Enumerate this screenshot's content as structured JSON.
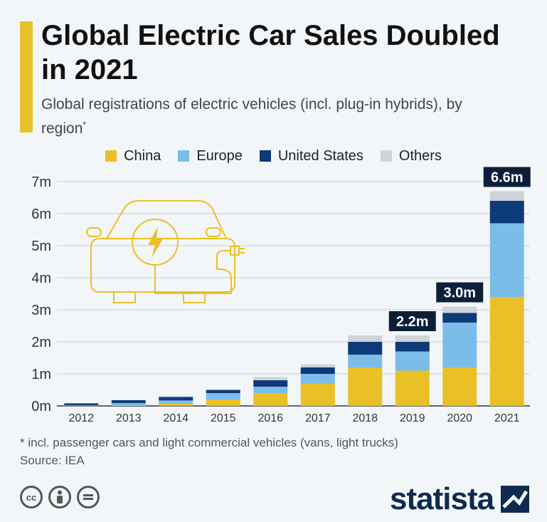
{
  "header": {
    "title": "Global Electric Car Sales Doubled in 2021",
    "subtitle": "Global registrations of electric vehicles (incl. plug-in hybrids), by region",
    "subtitle_mark": "*"
  },
  "chart_data": {
    "type": "bar",
    "stacked": true,
    "categories": [
      "2012",
      "2013",
      "2014",
      "2015",
      "2016",
      "2017",
      "2018",
      "2019",
      "2020",
      "2021"
    ],
    "series": [
      {
        "name": "China",
        "color": "#e9c028",
        "values": [
          0.0,
          0.02,
          0.07,
          0.2,
          0.4,
          0.7,
          1.2,
          1.1,
          1.2,
          3.4
        ]
      },
      {
        "name": "Europe",
        "color": "#7bbde8",
        "values": [
          0.02,
          0.07,
          0.1,
          0.2,
          0.2,
          0.3,
          0.4,
          0.6,
          1.4,
          2.3
        ]
      },
      {
        "name": "United States",
        "color": "#0d3a78",
        "values": [
          0.06,
          0.09,
          0.11,
          0.1,
          0.2,
          0.2,
          0.4,
          0.3,
          0.3,
          0.7
        ]
      },
      {
        "name": "Others",
        "color": "#cfd2d6",
        "values": [
          0.0,
          0.01,
          0.02,
          0.0,
          0.1,
          0.1,
          0.2,
          0.2,
          0.2,
          0.3
        ]
      }
    ],
    "y_ticks": [
      "0m",
      "1m",
      "2m",
      "3m",
      "4m",
      "5m",
      "6m",
      "7m"
    ],
    "ylim": [
      0,
      7
    ],
    "total_labels": [
      {
        "category": "2019",
        "text": "2.2m"
      },
      {
        "category": "2020",
        "text": "3.0m"
      },
      {
        "category": "2021",
        "text": "6.6m"
      }
    ],
    "legend_position": "top",
    "grid": true
  },
  "footer": {
    "note": "* incl. passenger cars and light commercial vehicles (vans, light trucks)",
    "source": "Source: IEA",
    "brand": "statista",
    "license_icons": [
      "creative-commons-icon",
      "attribution-icon",
      "no-derivatives-icon"
    ]
  }
}
